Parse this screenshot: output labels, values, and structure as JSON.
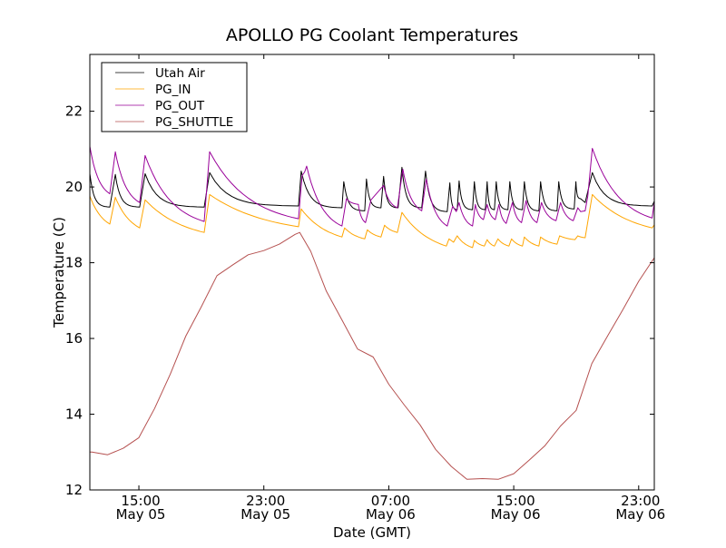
{
  "chart_data": {
    "type": "line",
    "title": "APOLLO PG Coolant Temperatures",
    "xlabel": "Date (GMT)",
    "ylabel": "Temperature (C)",
    "x_units": "hours since May 05 00:00 GMT",
    "xlim": [
      11.86,
      48.0
    ],
    "ylim": [
      12,
      23.5
    ],
    "grid": false,
    "legend_position": "top-left",
    "yticks": [
      12,
      14,
      16,
      18,
      20,
      22
    ],
    "xticks": [
      {
        "value": 15,
        "time": "15:00",
        "date": "May 05"
      },
      {
        "value": 23,
        "time": "23:00",
        "date": "May 05"
      },
      {
        "value": 31,
        "time": "07:00",
        "date": "May 06"
      },
      {
        "value": 39,
        "time": "15:00",
        "date": "May 06"
      },
      {
        "value": 47,
        "time": "23:00",
        "date": "May 06"
      }
    ],
    "series": [
      {
        "name": "Utah Air",
        "color": "#000000",
        "points": [
          [
            11.86,
            20.35
          ],
          [
            13.14,
            19.47
          ],
          [
            13.49,
            20.33
          ],
          [
            15.05,
            19.47
          ],
          [
            15.4,
            20.35
          ],
          [
            19.18,
            19.47
          ],
          [
            19.53,
            20.38
          ],
          [
            25.22,
            19.5
          ],
          [
            25.39,
            20.42
          ],
          [
            28.0,
            19.45
          ],
          [
            28.12,
            20.14
          ],
          [
            29.46,
            19.37
          ],
          [
            29.57,
            20.21
          ],
          [
            30.5,
            19.45
          ],
          [
            30.67,
            20.28
          ],
          [
            31.6,
            19.45
          ],
          [
            31.84,
            20.52
          ],
          [
            33.11,
            19.45
          ],
          [
            33.35,
            20.42
          ],
          [
            34.74,
            19.35
          ],
          [
            34.91,
            20.11
          ],
          [
            35.38,
            19.4
          ],
          [
            35.5,
            20.16
          ],
          [
            36.36,
            19.4
          ],
          [
            36.48,
            20.14
          ],
          [
            37.18,
            19.4
          ],
          [
            37.3,
            20.14
          ],
          [
            37.76,
            19.4
          ],
          [
            37.88,
            20.14
          ],
          [
            38.63,
            19.4
          ],
          [
            38.75,
            20.14
          ],
          [
            39.56,
            19.4
          ],
          [
            39.68,
            20.14
          ],
          [
            40.61,
            19.37
          ],
          [
            40.72,
            20.14
          ],
          [
            41.77,
            19.37
          ],
          [
            41.88,
            20.14
          ],
          [
            42.87,
            19.42
          ],
          [
            42.98,
            20.14
          ],
          [
            43.28,
            19.69
          ],
          [
            43.57,
            19.59
          ],
          [
            44.03,
            20.38
          ],
          [
            47.86,
            19.5
          ],
          [
            48.0,
            19.62
          ]
        ]
      },
      {
        "name": "PG_IN",
        "color": "#FFA500",
        "points": [
          [
            11.86,
            19.76
          ],
          [
            13.14,
            19.02
          ],
          [
            13.49,
            19.73
          ],
          [
            15.05,
            18.92
          ],
          [
            15.4,
            19.66
          ],
          [
            19.18,
            18.8
          ],
          [
            19.53,
            19.8
          ],
          [
            25.22,
            18.95
          ],
          [
            25.39,
            19.42
          ],
          [
            28.0,
            18.68
          ],
          [
            28.17,
            18.92
          ],
          [
            29.46,
            18.63
          ],
          [
            29.63,
            18.87
          ],
          [
            30.5,
            18.68
          ],
          [
            30.73,
            18.99
          ],
          [
            31.55,
            18.8
          ],
          [
            31.84,
            19.33
          ],
          [
            34.68,
            18.44
          ],
          [
            34.86,
            18.63
          ],
          [
            35.15,
            18.54
          ],
          [
            35.38,
            18.71
          ],
          [
            36.36,
            18.4
          ],
          [
            36.48,
            18.59
          ],
          [
            37.12,
            18.44
          ],
          [
            37.3,
            18.61
          ],
          [
            37.76,
            18.44
          ],
          [
            37.99,
            18.63
          ],
          [
            38.69,
            18.44
          ],
          [
            38.86,
            18.63
          ],
          [
            39.56,
            18.44
          ],
          [
            39.68,
            18.68
          ],
          [
            40.61,
            18.44
          ],
          [
            40.72,
            18.68
          ],
          [
            41.77,
            18.49
          ],
          [
            41.94,
            18.71
          ],
          [
            42.92,
            18.61
          ],
          [
            43.1,
            18.71
          ],
          [
            43.57,
            18.66
          ],
          [
            44.03,
            19.8
          ],
          [
            47.86,
            18.92
          ],
          [
            48.0,
            19.0
          ]
        ]
      },
      {
        "name": "PG_OUT",
        "color": "#990099",
        "points": [
          [
            11.86,
            21.07
          ],
          [
            13.14,
            19.82
          ],
          [
            13.49,
            20.93
          ],
          [
            15.05,
            19.59
          ],
          [
            15.4,
            20.83
          ],
          [
            19.18,
            19.09
          ],
          [
            19.53,
            20.93
          ],
          [
            25.22,
            19.16
          ],
          [
            25.45,
            20.3
          ],
          [
            25.62,
            20.4
          ],
          [
            25.74,
            20.55
          ],
          [
            28.0,
            18.97
          ],
          [
            28.29,
            19.69
          ],
          [
            29.05,
            19.54
          ],
          [
            29.51,
            19.06
          ],
          [
            29.86,
            19.66
          ],
          [
            30.67,
            20.04
          ],
          [
            31.55,
            19.45
          ],
          [
            31.9,
            20.47
          ],
          [
            33.11,
            19.37
          ],
          [
            33.4,
            20.21
          ],
          [
            34.74,
            18.97
          ],
          [
            35.09,
            19.49
          ],
          [
            35.32,
            19.35
          ],
          [
            35.5,
            19.59
          ],
          [
            36.36,
            18.97
          ],
          [
            36.54,
            19.54
          ],
          [
            37.06,
            19.14
          ],
          [
            37.3,
            19.54
          ],
          [
            37.82,
            19.14
          ],
          [
            38.05,
            19.54
          ],
          [
            38.52,
            19.04
          ],
          [
            38.92,
            19.59
          ],
          [
            39.5,
            19.06
          ],
          [
            39.79,
            19.64
          ],
          [
            40.49,
            19.06
          ],
          [
            40.78,
            19.59
          ],
          [
            41.71,
            19.11
          ],
          [
            42.0,
            19.59
          ],
          [
            42.81,
            19.11
          ],
          [
            43.1,
            19.45
          ],
          [
            43.28,
            19.35
          ],
          [
            43.57,
            19.37
          ],
          [
            43.74,
            19.76
          ],
          [
            44.03,
            21.02
          ],
          [
            47.86,
            19.18
          ],
          [
            48.0,
            19.6
          ]
        ]
      },
      {
        "name": "PG_SHUTTLE",
        "color": "#B5504F",
        "points": [
          [
            11.86,
            13.0
          ],
          [
            12,
            13.0
          ],
          [
            13,
            12.93
          ],
          [
            14,
            13.1
          ],
          [
            15,
            13.38
          ],
          [
            16,
            14.15
          ],
          [
            17,
            15.05
          ],
          [
            18,
            16.06
          ],
          [
            19,
            16.84
          ],
          [
            20,
            17.66
          ],
          [
            21,
            17.94
          ],
          [
            22,
            18.21
          ],
          [
            23,
            18.32
          ],
          [
            24,
            18.49
          ],
          [
            25,
            18.75
          ],
          [
            25.3,
            18.8
          ],
          [
            26,
            18.3
          ],
          [
            27,
            17.25
          ],
          [
            28,
            16.49
          ],
          [
            29,
            15.72
          ],
          [
            30,
            15.51
          ],
          [
            31,
            14.79
          ],
          [
            32,
            14.24
          ],
          [
            33,
            13.72
          ],
          [
            34,
            13.07
          ],
          [
            35,
            12.62
          ],
          [
            36,
            12.28
          ],
          [
            37,
            12.3
          ],
          [
            38,
            12.28
          ],
          [
            39,
            12.43
          ],
          [
            40,
            12.79
          ],
          [
            41,
            13.17
          ],
          [
            42,
            13.69
          ],
          [
            43,
            14.1
          ],
          [
            44,
            15.34
          ],
          [
            45,
            16.06
          ],
          [
            46,
            16.77
          ],
          [
            47,
            17.51
          ],
          [
            48,
            18.13
          ]
        ]
      }
    ]
  }
}
